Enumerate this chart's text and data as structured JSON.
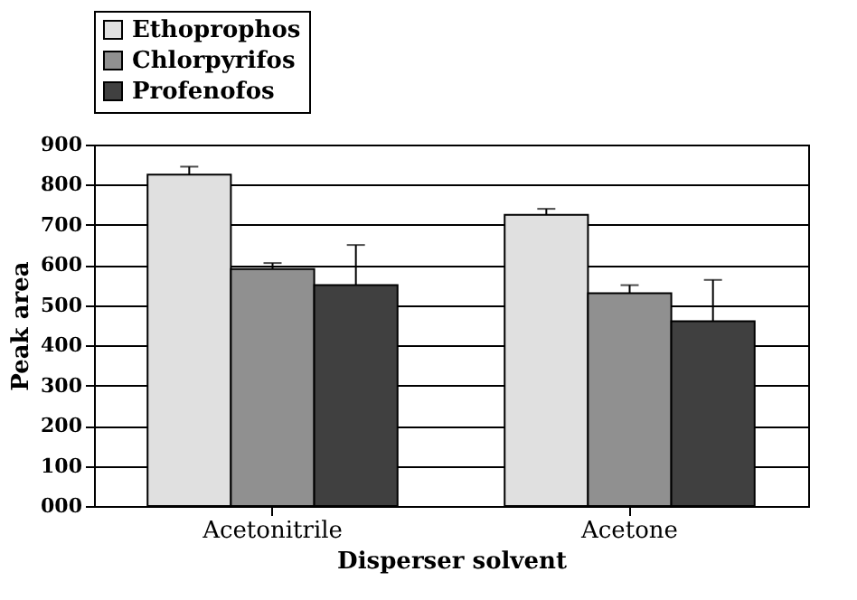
{
  "chart_data": {
    "type": "bar",
    "xlabel": "Disperser solvent",
    "ylabel": "Peak area",
    "categories": [
      "Acetonitrile",
      "Acetone"
    ],
    "series": [
      {
        "name": "Ethoprophos",
        "color": "#e0e0e0",
        "values": [
          825,
          725
        ],
        "errors": [
          [
            825,
            845
          ],
          [
            725,
            740
          ]
        ]
      },
      {
        "name": "Chlorpyrifos",
        "color": "#909090",
        "values": [
          590,
          530
        ],
        "errors": [
          [
            590,
            605
          ],
          [
            530,
            550
          ]
        ]
      },
      {
        "name": "Profenofos",
        "color": "#404040",
        "values": [
          550,
          460
        ],
        "errors": [
          [
            550,
            650
          ],
          [
            460,
            563
          ]
        ]
      }
    ],
    "ylim": [
      0,
      900
    ],
    "yticks": [
      {
        "value": 0,
        "label": "000"
      },
      100,
      200,
      300,
      400,
      500,
      600,
      700,
      800,
      900
    ],
    "grid": "y",
    "legend": "top left"
  }
}
